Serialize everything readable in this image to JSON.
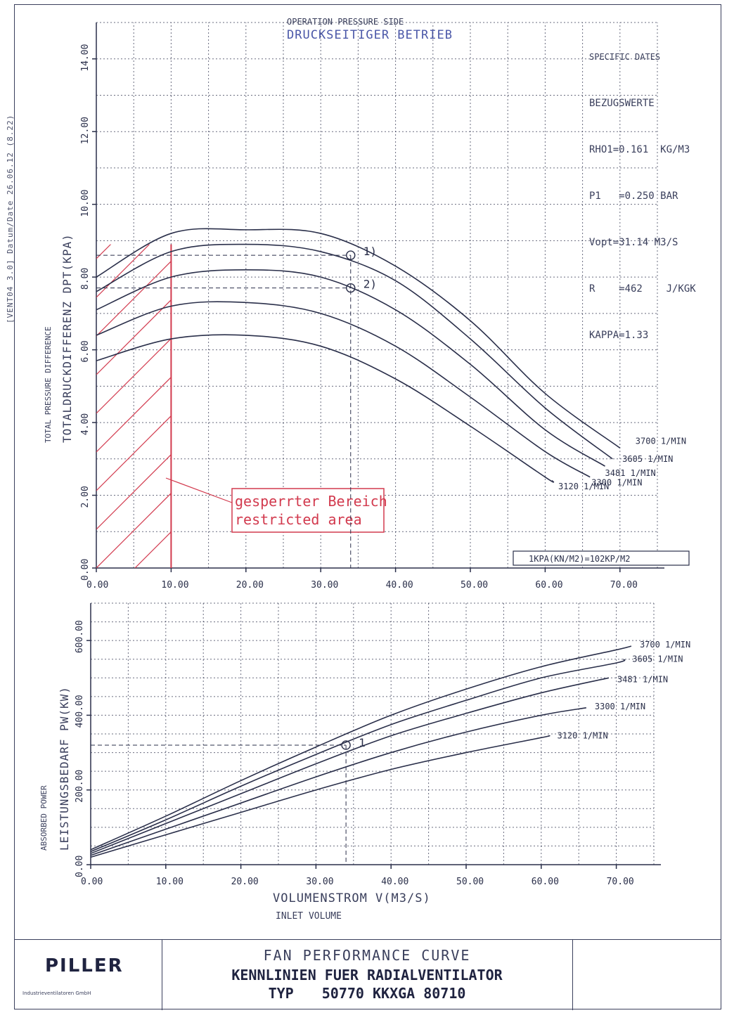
{
  "side_note": "[VENT04 3.0]  Datum/Date 26.06.12 (8.22)",
  "header": {
    "title_en": "OPERATION PRESSURE SIDE",
    "title_de": "DRUCKSEITIGER BETRIEB"
  },
  "specific_dates": {
    "title_en": "SPECIFIC DATES",
    "title_de": "BEZUGSWERTE",
    "rows": [
      "RHO1=0.161  KG/M3",
      "P1   =0.250 BAR",
      "Vopt=31.14 M3/S",
      "R    =462    J/KGK",
      "KAPPA=1.33"
    ]
  },
  "chart_data": [
    {
      "type": "line",
      "ylabel_en": "TOTAL PRESSURE DIFFERENCE",
      "ylabel_de": "TOTALDRUCKDIFFERENZ DPT(KPA)",
      "xlim": [
        0,
        75
      ],
      "ylim": [
        0,
        15
      ],
      "x_ticks": [
        "0.00",
        "10.00",
        "20.00",
        "30.00",
        "40.00",
        "50.00",
        "60.00",
        "70.00"
      ],
      "y_ticks": [
        "0.00",
        "2.00",
        "4.00",
        "6.00",
        "8.00",
        "10.00",
        "12.00",
        "14.00"
      ],
      "series": [
        {
          "name": "3700 1/MIN",
          "x": [
            0,
            10,
            20,
            30,
            40,
            50,
            60,
            70
          ],
          "y": [
            8.0,
            9.2,
            9.3,
            9.2,
            8.3,
            6.8,
            4.8,
            3.3
          ]
        },
        {
          "name": "3605 1/MIN",
          "x": [
            0,
            10,
            20,
            30,
            40,
            50,
            60,
            69
          ],
          "y": [
            7.6,
            8.7,
            8.9,
            8.7,
            7.9,
            6.3,
            4.4,
            3.0
          ]
        },
        {
          "name": "3481 1/MIN",
          "x": [
            0,
            10,
            20,
            30,
            40,
            50,
            60,
            68
          ],
          "y": [
            7.1,
            8.0,
            8.2,
            8.0,
            7.1,
            5.6,
            3.8,
            2.8
          ]
        },
        {
          "name": "3300 1/MIN",
          "x": [
            0,
            10,
            20,
            30,
            40,
            50,
            60,
            66
          ],
          "y": [
            6.4,
            7.2,
            7.3,
            7.0,
            6.1,
            4.7,
            3.2,
            2.5
          ]
        },
        {
          "name": "3120 1/MIN",
          "x": [
            0,
            10,
            20,
            30,
            40,
            50,
            60,
            61
          ],
          "y": [
            5.7,
            6.3,
            6.4,
            6.1,
            5.2,
            3.9,
            2.5,
            2.4
          ]
        }
      ],
      "operating_points": [
        {
          "label": "1)",
          "x": 34,
          "y": 8.6
        },
        {
          "label": "2)",
          "x": 34,
          "y": 7.7
        }
      ],
      "restricted_area": {
        "label_de": "gesperrter Bereich",
        "label_en": "restricted area",
        "x_max": 10
      },
      "unit_note": "1KPA(KN/M2)=102KP/M2"
    },
    {
      "type": "line",
      "ylabel_en": "ABSORBED POWER",
      "ylabel_de": "LEISTUNGSBEDARF PW(KW)",
      "xlabel_de": "VOLUMENSTROM V(M3/S)",
      "xlabel_en": "INLET VOLUME",
      "xlim": [
        0,
        75
      ],
      "ylim": [
        0,
        700
      ],
      "x_ticks": [
        "0.00",
        "10.00",
        "20.00",
        "30.00",
        "40.00",
        "50.00",
        "60.00",
        "70.00"
      ],
      "y_ticks": [
        "0.00",
        "200.00",
        "400.00",
        "600.00"
      ],
      "series": [
        {
          "name": "3700 1/MIN",
          "x": [
            0,
            10,
            20,
            30,
            40,
            50,
            60,
            70,
            72
          ],
          "y": [
            40,
            130,
            225,
            315,
            400,
            470,
            530,
            575,
            585
          ]
        },
        {
          "name": "3605 1/MIN",
          "x": [
            0,
            10,
            20,
            30,
            40,
            50,
            60,
            70,
            71
          ],
          "y": [
            35,
            120,
            210,
            295,
            375,
            440,
            500,
            540,
            550
          ]
        },
        {
          "name": "3481 1/MIN",
          "x": [
            0,
            10,
            20,
            30,
            40,
            50,
            60,
            69
          ],
          "y": [
            30,
            110,
            190,
            270,
            345,
            405,
            460,
            500
          ]
        },
        {
          "name": "3300 1/MIN",
          "x": [
            0,
            10,
            20,
            30,
            40,
            50,
            60,
            66
          ],
          "y": [
            25,
            95,
            165,
            235,
            300,
            355,
            400,
            420
          ]
        },
        {
          "name": "3120 1/MIN",
          "x": [
            0,
            10,
            20,
            30,
            40,
            50,
            60,
            61
          ],
          "y": [
            20,
            80,
            140,
            200,
            255,
            300,
            340,
            345
          ]
        }
      ],
      "operating_points": [
        {
          "label": "1",
          "x": 34,
          "y": 320
        }
      ]
    }
  ],
  "footer": {
    "logo": "PILLER",
    "logo_sub": "Industrieventilatoren GmbH",
    "title_en": "FAN PERFORMANCE CURVE",
    "title_de": "KENNLINIEN FUER RADIALVENTILATOR",
    "type_label": "TYP",
    "type_value": "50770 KKXGA 80710"
  },
  "colors": {
    "ink": "#2a2f4a",
    "grid": "#2a2f4a",
    "restricted": "#d23a4e",
    "header_blue": "#4a57a8"
  }
}
